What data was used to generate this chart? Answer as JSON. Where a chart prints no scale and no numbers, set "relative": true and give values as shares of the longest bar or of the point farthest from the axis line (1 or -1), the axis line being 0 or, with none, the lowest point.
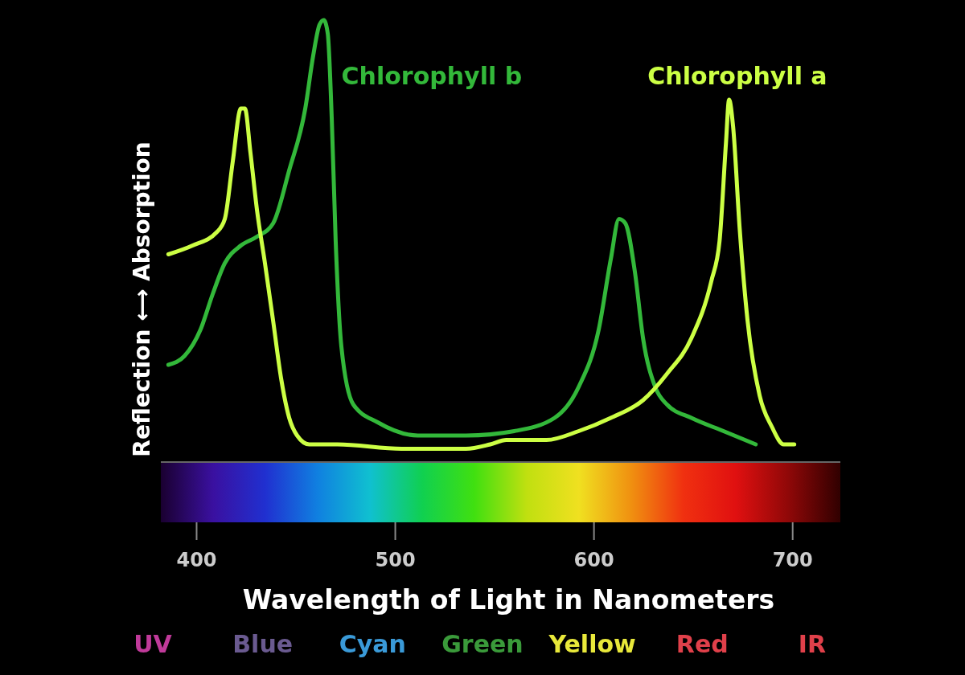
{
  "chart_data": {
    "type": "line",
    "relative": true,
    "xlabel": "Wavelength of Light in Nanometers",
    "ylabel": "Reflection ⟷ Absorption",
    "xlim": [
      382,
      724
    ],
    "xticks": [
      400,
      500,
      600,
      700
    ],
    "grid": false,
    "marker": "none",
    "line_style": "solid",
    "series": [
      {
        "name": "Chlorophyll b",
        "color": "#33b83a",
        "x": [
          385.8,
          393.9,
          402.0,
          408.1,
          414.2,
          422.3,
          430.4,
          438.5,
          446.6,
          454.7,
          458.7,
          461.9,
          464.0,
          466.0,
          468.0,
          470.0,
          472.9,
          478.9,
          491.1,
          511.3,
          535.6,
          559.9,
          580.2,
          592.3,
          602.4,
          608.5,
          612.6,
          615.8,
          620.6,
          624.7,
          630.8,
          636.8,
          649.0,
          665.2,
          681.4
        ],
        "values": [
          0.22,
          0.24,
          0.3,
          0.38,
          0.45,
          0.49,
          0.51,
          0.54,
          0.66,
          0.8,
          0.92,
          0.99,
          1,
          0.97,
          0.78,
          0.5,
          0.26,
          0.13,
          0.09,
          0.06,
          0.06,
          0.07,
          0.1,
          0.17,
          0.3,
          0.46,
          0.55,
          0.54,
          0.43,
          0.28,
          0.17,
          0.13,
          0.1,
          0.07,
          0.04
        ]
      },
      {
        "name": "Chlorophyll a",
        "color": "#ccff44",
        "x": [
          385.8,
          398.0,
          410.1,
          414.2,
          418.2,
          422.3,
          424.3,
          427.1,
          430.4,
          434.4,
          438.5,
          442.5,
          446.6,
          450.6,
          456.7,
          470.9,
          503.2,
          535.6,
          547.8,
          555.9,
          576.1,
          592.3,
          608.5,
          624.7,
          636.8,
          649.0,
          659.1,
          663.2,
          666.4,
          668.0,
          670.0,
          673.3,
          677.3,
          683.4,
          689.5,
          695.5,
          700.8
        ],
        "values": [
          0.47,
          0.49,
          0.52,
          0.55,
          0.68,
          0.8,
          0.8,
          0.7,
          0.57,
          0.45,
          0.32,
          0.19,
          0.1,
          0.06,
          0.04,
          0.04,
          0.03,
          0.03,
          0.04,
          0.05,
          0.05,
          0.07,
          0.1,
          0.14,
          0.2,
          0.28,
          0.41,
          0.5,
          0.72,
          0.82,
          0.76,
          0.53,
          0.32,
          0.15,
          0.08,
          0.04,
          0.04
        ]
      }
    ],
    "annotations": [
      "UV",
      "Blue",
      "Cyan",
      "Green",
      "Yellow",
      "Red",
      "IR"
    ]
  }
}
